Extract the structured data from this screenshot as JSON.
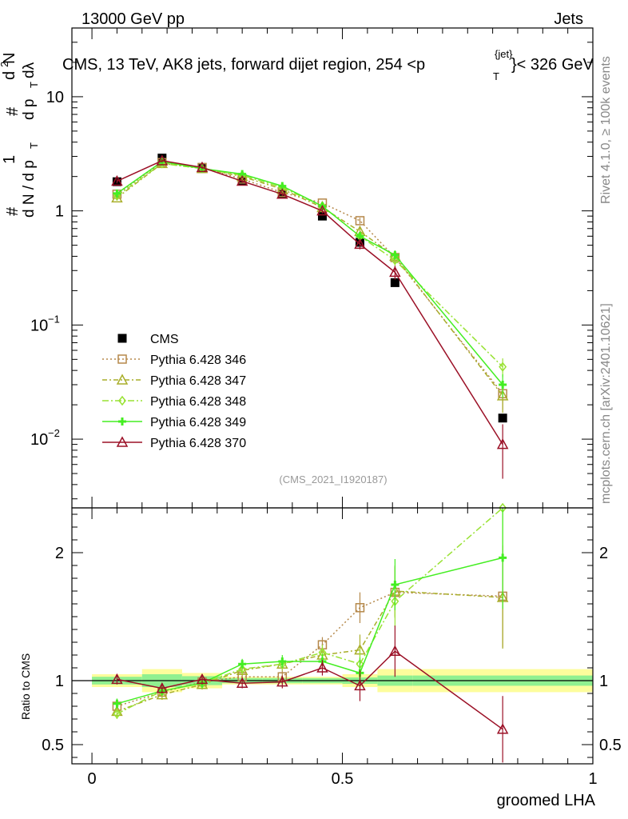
{
  "header": {
    "energy_label": "13000 GeV pp",
    "category_label": "Jets"
  },
  "side_labels": {
    "rivet": "Rivet 4.1.0, ≥ 100k events",
    "source": "mcplots.cern.ch [arXiv:2401.10621]"
  },
  "colors": {
    "cms": "#000000",
    "p346": "#b5884a",
    "p347": "#a9ae2a",
    "p348": "#99e234",
    "p349": "#44ee22",
    "p370": "#9b1026",
    "band_inner": "#90f090",
    "band_outer": "#fdfd9c"
  },
  "chart_data": [
    {
      "type": "line",
      "panel": "main",
      "title": "CMS, 13 TeV, AK8 jets, forward dijet region, 254 <p",
      "title_sup": "{jet}",
      "title_sub": "T",
      "title_end": "}< 326 GeV",
      "ylabel_parts": {
        "one": "1",
        "dn": "d N / d p",
        "hash": "#",
        "d2n": "d",
        "exp2": "2",
        "n": "N",
        "dp": "d p",
        "dl": "dλ",
        "t": "T"
      },
      "yscale": "log",
      "ylim": [
        0.0025,
        40
      ],
      "xlim": [
        -0.04,
        1.0
      ],
      "ytick_labels": {
        "ten_base": "10",
        "e_minus1": "−1",
        "e_minus2": "−2",
        "one": "1",
        "ten": "10"
      },
      "watermark": "(CMS_2021_I1920187)",
      "x": [
        0.05,
        0.14,
        0.22,
        0.3,
        0.38,
        0.46,
        0.535,
        0.605,
        0.82
      ],
      "series": [
        {
          "name": "CMS",
          "key": "cms",
          "values": [
            1.8,
            2.9,
            2.35,
            1.85,
            1.4,
            0.9,
            0.53,
            0.235,
            0.0153
          ],
          "yerr_up": [
            0.08,
            0.1,
            0.08,
            0.06,
            0.05,
            0.04,
            0.03,
            0.015,
            0.0015
          ]
        },
        {
          "name": "Pythia 6.428 346",
          "key": "p346",
          "values": [
            1.4,
            2.65,
            2.4,
            1.9,
            1.45,
            1.17,
            0.82,
            0.39,
            0.025
          ],
          "yerr_up": [
            0.06,
            0.08,
            0.07,
            0.06,
            0.05,
            0.05,
            0.05,
            0.04,
            0.007
          ]
        },
        {
          "name": "Pythia 6.428 347",
          "key": "p347",
          "values": [
            1.3,
            2.6,
            2.35,
            2.0,
            1.55,
            1.07,
            0.66,
            0.4,
            0.024
          ],
          "yerr_up": [
            0.06,
            0.08,
            0.07,
            0.06,
            0.05,
            0.05,
            0.05,
            0.04,
            0.007
          ]
        },
        {
          "name": "Pythia 6.428 348",
          "key": "p348",
          "values": [
            1.35,
            2.6,
            2.35,
            2.05,
            1.6,
            1.1,
            0.6,
            0.37,
            0.043
          ],
          "yerr_up": [
            0.06,
            0.08,
            0.07,
            0.06,
            0.05,
            0.05,
            0.05,
            0.04,
            0.008
          ]
        },
        {
          "name": "Pythia 6.428 349",
          "key": "p349",
          "values": [
            1.42,
            2.7,
            2.35,
            2.1,
            1.65,
            1.1,
            0.6,
            0.41,
            0.03
          ],
          "yerr_up": [
            0.06,
            0.08,
            0.07,
            0.06,
            0.05,
            0.05,
            0.05,
            0.04,
            0.007
          ]
        },
        {
          "name": "Pythia 6.428 370",
          "key": "p370",
          "values": [
            1.82,
            2.75,
            2.4,
            1.82,
            1.4,
            1.0,
            0.51,
            0.29,
            0.009
          ],
          "yerr_up": [
            0.08,
            0.1,
            0.08,
            0.06,
            0.05,
            0.05,
            0.05,
            0.04,
            0.0045
          ]
        }
      ]
    },
    {
      "type": "line",
      "panel": "ratio",
      "ylabel": "Ratio to CMS",
      "ylim": [
        0.35,
        2.35
      ],
      "yticks": [
        0.5,
        1,
        2
      ],
      "ytick_labels": [
        "0.5",
        "1",
        "2"
      ],
      "xlabel": "groomed LHA",
      "xticks": [
        0,
        0.5,
        1
      ],
      "xtick_labels": [
        "0",
        "0.5",
        "1"
      ],
      "reference_line": 1,
      "band_edges": [
        0.0,
        0.1,
        0.18,
        0.26,
        0.34,
        0.42,
        0.5,
        0.57,
        0.64,
        1.0
      ],
      "band_inner_half": [
        0.03,
        0.05,
        0.035,
        0.02,
        0.02,
        0.02,
        0.025,
        0.04,
        0.04
      ],
      "band_outer_half": [
        0.05,
        0.09,
        0.06,
        0.03,
        0.03,
        0.03,
        0.05,
        0.09,
        0.09
      ],
      "x": [
        0.05,
        0.14,
        0.22,
        0.3,
        0.38,
        0.46,
        0.535,
        0.605,
        0.82
      ],
      "series": [
        {
          "name": "Pythia 6.428 346",
          "key": "p346",
          "values": [
            0.8,
            0.91,
            0.99,
            1.03,
            1.03,
            1.28,
            1.57,
            1.69,
            1.66
          ],
          "err": [
            0.04,
            0.04,
            0.04,
            0.04,
            0.05,
            0.06,
            0.12,
            0.2,
            0.4
          ]
        },
        {
          "name": "Pythia 6.428 347",
          "key": "p347",
          "values": [
            0.76,
            0.89,
            0.97,
            1.08,
            1.13,
            1.2,
            1.24,
            1.7,
            1.65
          ],
          "err": [
            0.04,
            0.04,
            0.04,
            0.04,
            0.05,
            0.06,
            0.12,
            0.2,
            0.4
          ]
        },
        {
          "name": "Pythia 6.428 348",
          "key": "p348",
          "values": [
            0.74,
            0.92,
            0.98,
            1.09,
            1.13,
            1.22,
            1.13,
            1.62,
            2.35
          ],
          "err": [
            0.04,
            0.04,
            0.04,
            0.04,
            0.05,
            0.06,
            0.12,
            0.2,
            0.4
          ]
        },
        {
          "name": "Pythia 6.428 349",
          "key": "p349",
          "values": [
            0.82,
            0.92,
            0.98,
            1.13,
            1.15,
            1.15,
            1.06,
            1.75,
            1.96
          ],
          "err": [
            0.04,
            0.04,
            0.04,
            0.04,
            0.05,
            0.06,
            0.12,
            0.2,
            0.4
          ]
        },
        {
          "name": "Pythia 6.428 370",
          "key": "p370",
          "values": [
            1.01,
            0.94,
            1.01,
            0.98,
            0.99,
            1.1,
            0.96,
            1.23,
            0.62
          ],
          "err": [
            0.04,
            0.04,
            0.04,
            0.04,
            0.05,
            0.06,
            0.12,
            0.2,
            0.26
          ]
        }
      ]
    }
  ]
}
